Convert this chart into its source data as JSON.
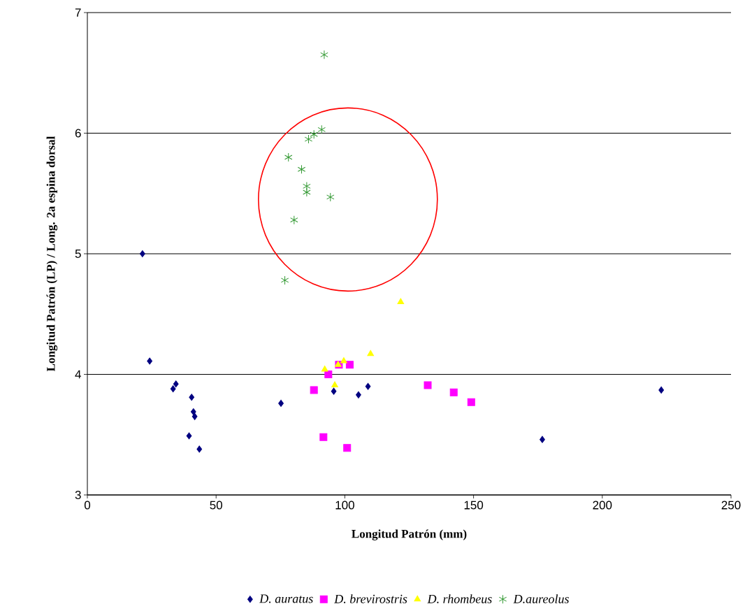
{
  "chart_data": {
    "type": "scatter",
    "xlabel": "Longitud Patrón (mm)",
    "ylabel": "Longitud Patrón (LP) / Long. 2a espina dorsal",
    "xlim": [
      0,
      250
    ],
    "xticks": [
      0,
      50,
      100,
      150,
      200,
      250
    ],
    "ylim": [
      3,
      7
    ],
    "yticks": [
      3,
      4,
      5,
      6,
      7
    ],
    "grid": "y",
    "legend": "bottom",
    "series": [
      {
        "name": "D. auratus",
        "color": "#000080",
        "marker": "diamond",
        "x": [
          21.4,
          24.2,
          33.3,
          34.4,
          40.5,
          41.2,
          41.7,
          39.5,
          43.5,
          75.2,
          95.7,
          105.3,
          109.0,
          176.7,
          222.9
        ],
        "values": [
          5.0,
          4.11,
          3.88,
          3.92,
          3.81,
          3.69,
          3.65,
          3.49,
          3.38,
          3.76,
          3.86,
          3.83,
          3.9,
          3.46,
          3.87
        ]
      },
      {
        "name": "D. brevirostris",
        "color": "#ff00ff",
        "marker": "square",
        "x": [
          88.0,
          93.6,
          97.7,
          101.9,
          91.7,
          100.9,
          132.2,
          142.3,
          149.1
        ],
        "values": [
          3.87,
          4.0,
          4.08,
          4.08,
          3.48,
          3.39,
          3.91,
          3.85,
          3.77
        ]
      },
      {
        "name": "D. rhombeus",
        "color": "#ffff00",
        "marker": "triangle",
        "x": [
          121.7,
          110.0,
          99.6,
          97.4,
          92.2,
          96.1
        ],
        "values": [
          4.6,
          4.17,
          4.11,
          4.08,
          4.04,
          3.91
        ]
      },
      {
        "name": "D.aureolus",
        "color": "#339933",
        "marker": "cross",
        "x": [
          92.0,
          91.0,
          88.0,
          85.9,
          78.1,
          83.2,
          85.2,
          85.2,
          94.4,
          80.3,
          76.7
        ],
        "values": [
          6.65,
          6.03,
          5.99,
          5.95,
          5.8,
          5.7,
          5.56,
          5.51,
          5.47,
          5.28,
          4.78
        ]
      }
    ]
  }
}
